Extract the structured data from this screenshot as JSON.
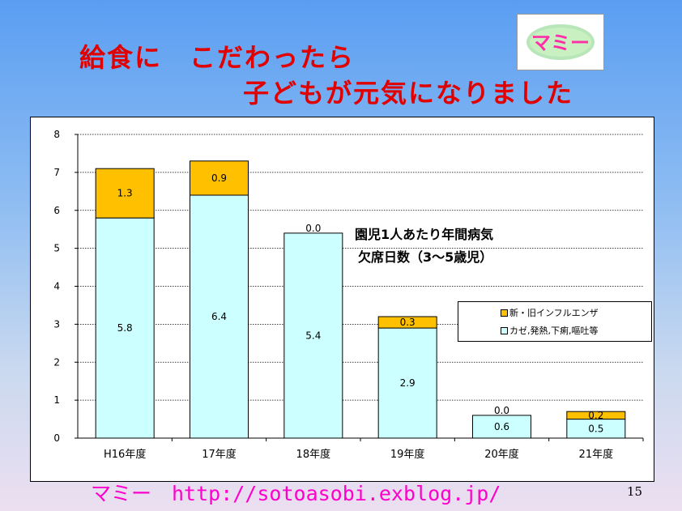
{
  "title": {
    "line1": "給食に　こだわったら",
    "line2": "子どもが元気になりました"
  },
  "logo": {
    "text": "マミー"
  },
  "footer": {
    "text": "マミー　http://sotoasobi.exblog.jp/"
  },
  "page_number": "15",
  "chart_data": {
    "type": "bar",
    "stacked": true,
    "categories": [
      "H16年度",
      "17年度",
      "18年度",
      "19年度",
      "20年度",
      "21年度"
    ],
    "series": [
      {
        "name": "カゼ,発熱,下痢,嘔吐等",
        "values": [
          5.8,
          6.4,
          5.4,
          2.9,
          0.6,
          0.5
        ],
        "labels": [
          "5.8",
          "6.4",
          "5.4",
          "2.9",
          "0.6",
          "0.5"
        ],
        "color": "#ccffff"
      },
      {
        "name": "新・旧インフルエンザ",
        "values": [
          1.3,
          0.9,
          0.0,
          0.3,
          0.0,
          0.2
        ],
        "labels": [
          "1.3",
          "0.9",
          "0.0",
          "0.3",
          "0.0",
          "0.2"
        ],
        "color": "#ffc000"
      }
    ],
    "legend_order": [
      "新・旧インフルエンザ",
      "カゼ,発熱,下痢,嘔吐等"
    ],
    "legend_position": "right",
    "annotation": {
      "line1": "園児1人あたり年間病気",
      "line2": "欠席日数（3〜5歳児）"
    },
    "ylim": [
      0,
      8
    ],
    "yticks": [
      "0",
      "1",
      "2",
      "3",
      "4",
      "5",
      "6",
      "7",
      "8"
    ],
    "grid": "horizontal dotted",
    "xlabel": "",
    "ylabel": ""
  }
}
